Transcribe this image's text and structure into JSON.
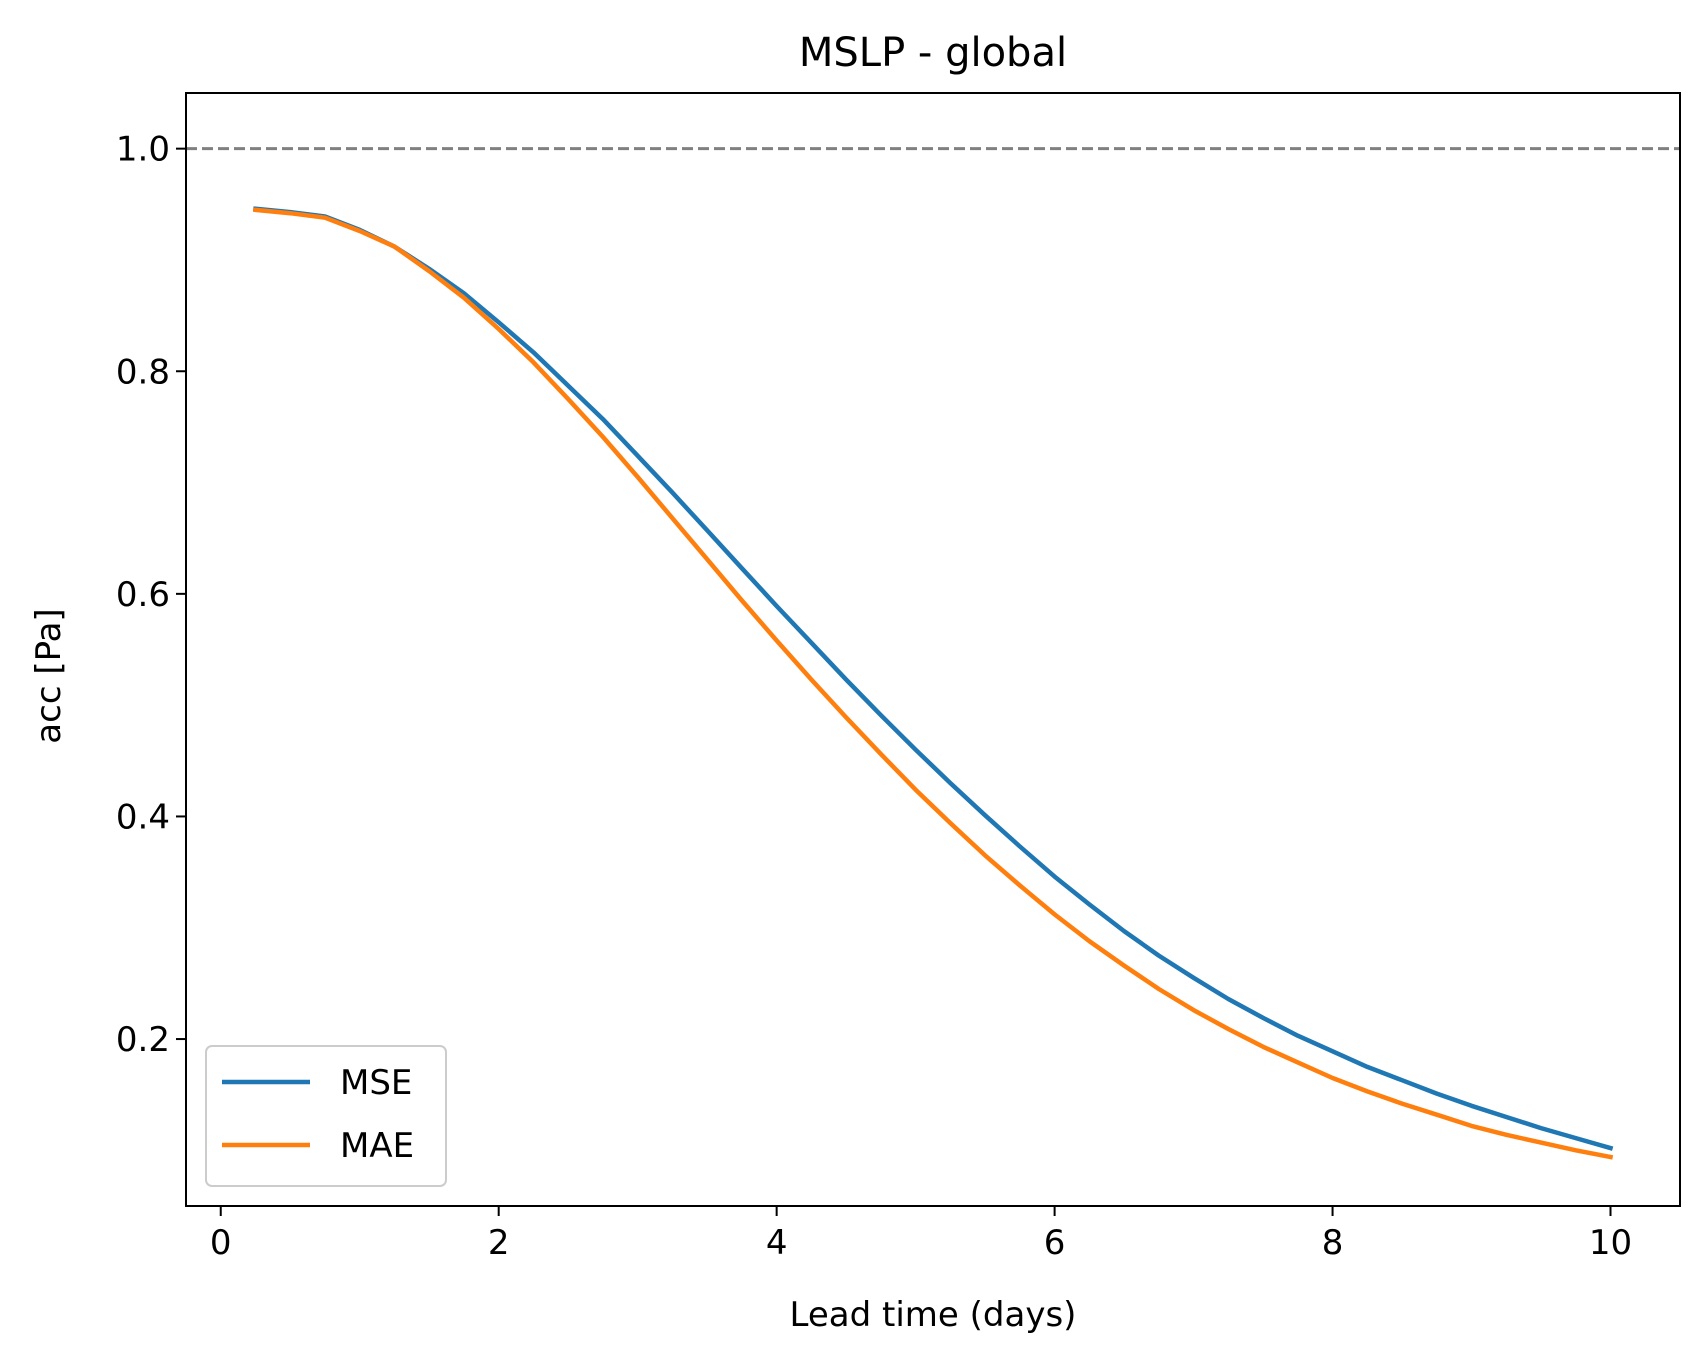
{
  "chart_data": {
    "type": "line",
    "title": "MSLP - global",
    "xlabel": "Lead time (days)",
    "ylabel": "acc [Pa]",
    "xlim": [
      -0.25,
      10.5
    ],
    "ylim": [
      0.05,
      1.05
    ],
    "xticks": [
      0,
      2,
      4,
      6,
      8,
      10
    ],
    "xtick_labels": [
      "0",
      "2",
      "4",
      "6",
      "8",
      "10"
    ],
    "yticks": [
      0.2,
      0.4,
      0.6,
      0.8,
      1.0
    ],
    "ytick_labels": [
      "0.2",
      "0.4",
      "0.6",
      "0.8",
      "1.0"
    ],
    "grid": false,
    "legend_position": "lower-left",
    "reference_line": {
      "y": 1.0,
      "style": "dashed",
      "color": "#808080"
    },
    "x": [
      0.25,
      0.5,
      0.75,
      1.0,
      1.25,
      1.5,
      1.75,
      2.0,
      2.25,
      2.5,
      2.75,
      3.0,
      3.25,
      3.5,
      3.75,
      4.0,
      4.25,
      4.5,
      4.75,
      5.0,
      5.25,
      5.5,
      5.75,
      6.0,
      6.25,
      6.5,
      6.75,
      7.0,
      7.25,
      7.5,
      7.75,
      8.0,
      8.25,
      8.5,
      8.75,
      9.0,
      9.25,
      9.5,
      9.75,
      10.0
    ],
    "series": [
      {
        "name": "MSE",
        "color": "#1f77b4",
        "values": [
          0.946,
          0.943,
          0.939,
          0.927,
          0.912,
          0.892,
          0.87,
          0.844,
          0.817,
          0.787,
          0.757,
          0.724,
          0.691,
          0.657,
          0.623,
          0.589,
          0.556,
          0.523,
          0.491,
          0.46,
          0.43,
          0.401,
          0.373,
          0.346,
          0.321,
          0.297,
          0.275,
          0.255,
          0.236,
          0.219,
          0.203,
          0.189,
          0.175,
          0.163,
          0.151,
          0.14,
          0.13,
          0.12,
          0.111,
          0.102
        ]
      },
      {
        "name": "MAE",
        "color": "#ff7f0e",
        "values": [
          0.945,
          0.942,
          0.938,
          0.926,
          0.912,
          0.89,
          0.866,
          0.838,
          0.808,
          0.775,
          0.741,
          0.705,
          0.668,
          0.631,
          0.594,
          0.558,
          0.523,
          0.489,
          0.456,
          0.424,
          0.394,
          0.365,
          0.338,
          0.312,
          0.288,
          0.266,
          0.245,
          0.226,
          0.209,
          0.193,
          0.179,
          0.165,
          0.153,
          0.142,
          0.132,
          0.122,
          0.114,
          0.107,
          0.1,
          0.094
        ]
      }
    ]
  }
}
